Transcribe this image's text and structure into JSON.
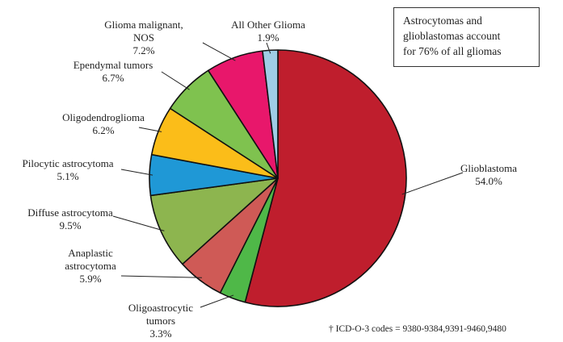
{
  "chart_data": {
    "type": "pie",
    "title": "",
    "slices": [
      {
        "label": "Glioblastoma",
        "lines": [
          "Glioblastoma"
        ],
        "value_label": "54.0%",
        "value": 54.0,
        "color": "#bf1e2d"
      },
      {
        "label": "Oligoastrocytic tumors",
        "lines": [
          "Oligoastrocytic",
          "tumors"
        ],
        "value_label": "3.3%",
        "value": 3.3,
        "color": "#4fb848"
      },
      {
        "label": "Anaplastic astrocytoma",
        "lines": [
          "Anaplastic",
          "astrocytoma"
        ],
        "value_label": "5.9%",
        "value": 5.9,
        "color": "#cf5a56"
      },
      {
        "label": "Diffuse astrocytoma",
        "lines": [
          "Diffuse astrocytoma"
        ],
        "value_label": "9.5%",
        "value": 9.5,
        "color": "#8db54f"
      },
      {
        "label": "Pilocytic astrocytoma",
        "lines": [
          "Pilocytic astrocytoma"
        ],
        "value_label": "5.1%",
        "value": 5.1,
        "color": "#1f98d6"
      },
      {
        "label": "Oligodendroglioma",
        "lines": [
          "Oligodendroglioma"
        ],
        "value_label": "6.2%",
        "value": 6.2,
        "color": "#fbbd19"
      },
      {
        "label": "Ependymal tumors",
        "lines": [
          "Ependymal tumors"
        ],
        "value_label": "6.7%",
        "value": 6.7,
        "color": "#7fc24f"
      },
      {
        "label": "Glioma malignant, NOS",
        "lines": [
          "Glioma malignant,",
          "NOS"
        ],
        "value_label": "7.2%",
        "value": 7.2,
        "color": "#e8176b"
      },
      {
        "label": "All Other Glioma",
        "lines": [
          "All Other Glioma"
        ],
        "value_label": "1.9%",
        "value": 1.9,
        "color": "#9fcde6"
      }
    ]
  },
  "note": {
    "line1": "Astrocytomas and",
    "line2": "glioblastomas account",
    "line3": "for 76% of all gliomas"
  },
  "footnote": "† ICD-O-3 codes = 9380-9384,9391-9460,9480"
}
